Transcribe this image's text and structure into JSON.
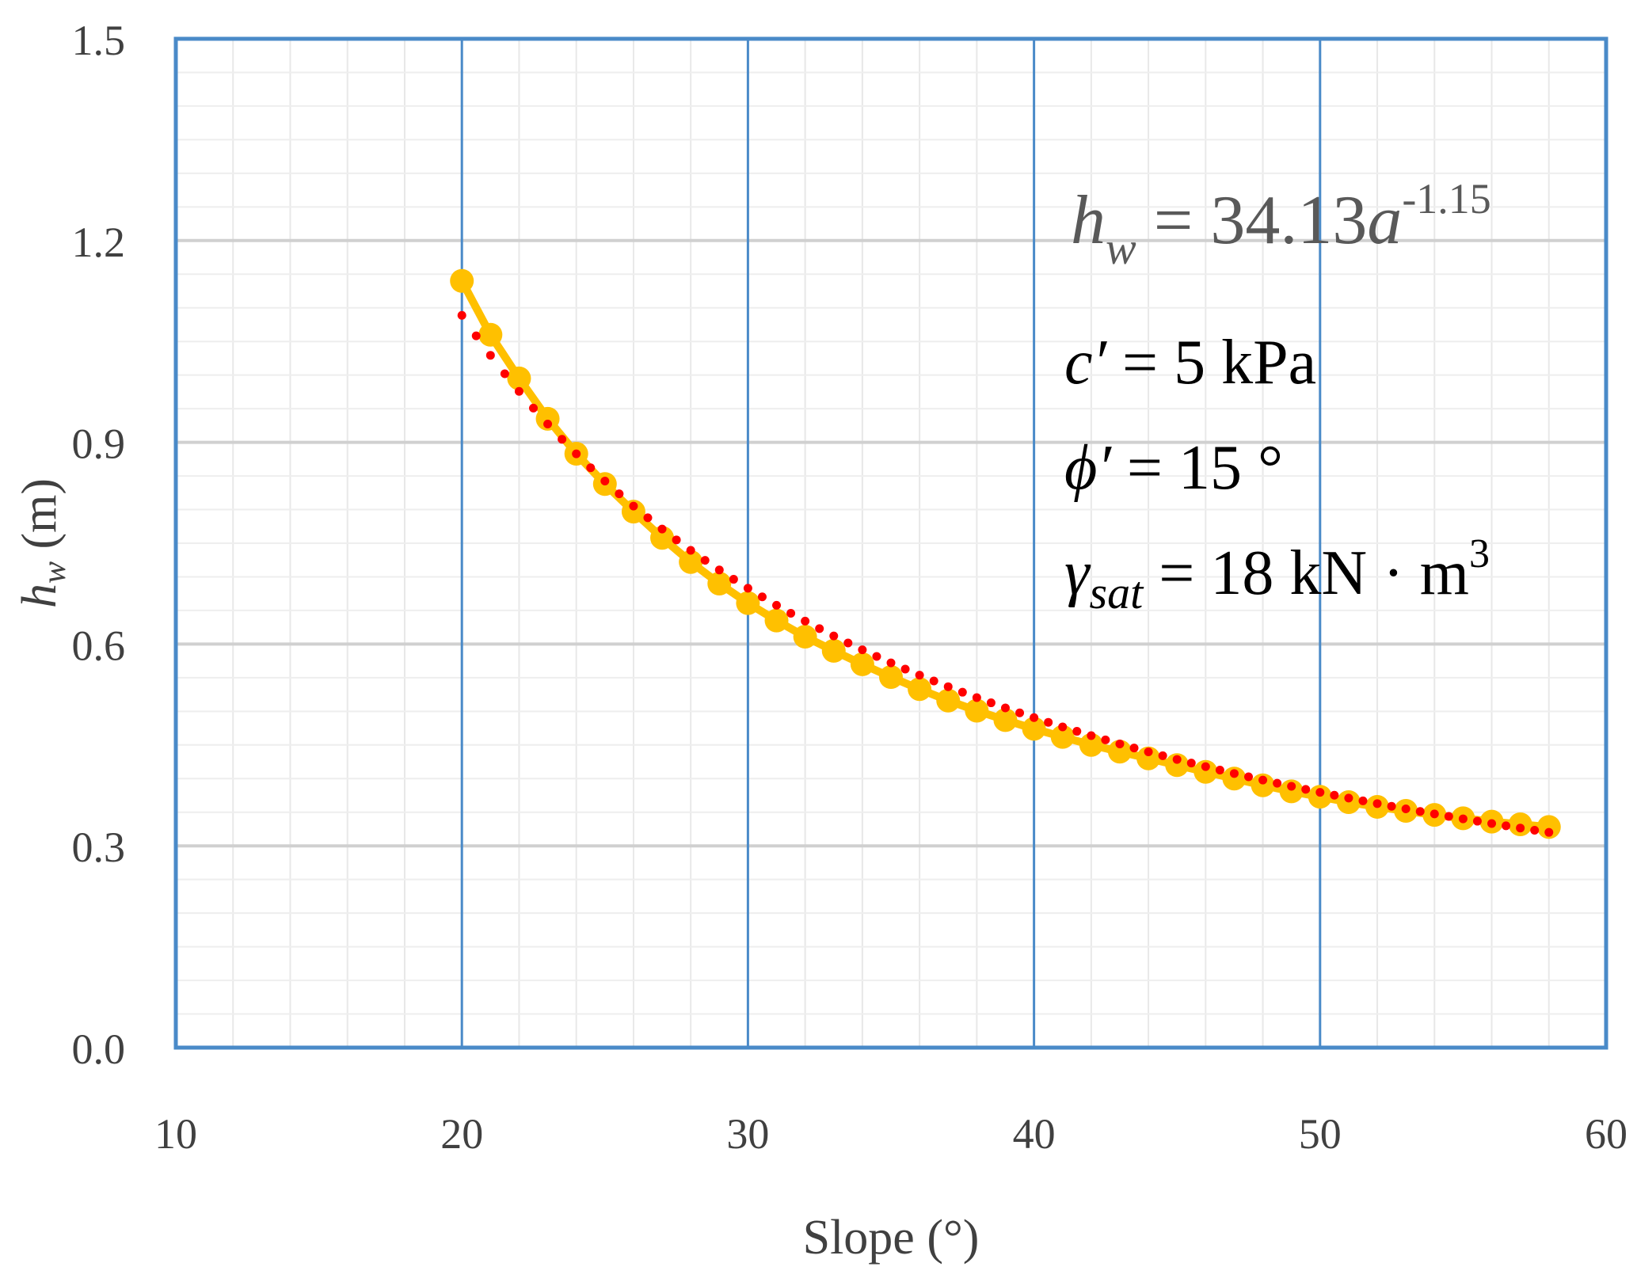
{
  "chart_data": {
    "type": "scatter",
    "title": "",
    "xlabel": "Slope (°)",
    "ylabel": {
      "main": "h",
      "sub": "w",
      "unit": " (m)"
    },
    "xlim": [
      10,
      60
    ],
    "ylim": [
      0,
      1.5
    ],
    "x_ticks": [
      "10",
      "20",
      "30",
      "40",
      "50",
      "60"
    ],
    "y_ticks": [
      "0.0",
      "0.3",
      "0.6",
      "0.9",
      "1.2",
      "1.5"
    ],
    "x_tick_values": [
      10,
      20,
      30,
      40,
      50,
      60
    ],
    "y_tick_values": [
      0,
      0.3,
      0.6,
      0.9,
      1.2,
      1.5
    ],
    "grid": true,
    "series": [
      {
        "color": "#FFC000",
        "style": "markers-with-line",
        "x": [
          20,
          21,
          22,
          23,
          24,
          25,
          26,
          27,
          28,
          29,
          30,
          31,
          32,
          33,
          34,
          35,
          36,
          37,
          38,
          39,
          40,
          41,
          42,
          43,
          44,
          45,
          46,
          47,
          48,
          49,
          50,
          51,
          52,
          53,
          54,
          55,
          56,
          57,
          58
        ],
        "y": [
          1.14,
          1.06,
          0.995,
          0.935,
          0.883,
          0.838,
          0.797,
          0.758,
          0.722,
          0.69,
          0.661,
          0.635,
          0.611,
          0.59,
          0.57,
          0.551,
          0.533,
          0.516,
          0.501,
          0.487,
          0.474,
          0.462,
          0.45,
          0.44,
          0.43,
          0.42,
          0.41,
          0.4,
          0.39,
          0.381,
          0.373,
          0.365,
          0.358,
          0.352,
          0.346,
          0.341,
          0.336,
          0.332,
          0.328
        ]
      },
      {
        "color": "#FF0000",
        "style": "dotted-trendline",
        "model": {
          "a": 34.13,
          "b": -1.15
        }
      }
    ],
    "annotations": {
      "equation": {
        "lhs": "h",
        "lhs_sub": "w",
        "rhs": " = 34.13",
        "var": "a",
        "exp": "-1.15"
      },
      "cohesion": {
        "sym": "c′",
        "text": " = 5 kPa"
      },
      "friction": {
        "sym": "ϕ′",
        "text": " = 15 °"
      },
      "unit_weight": {
        "sym": "γ",
        "sub": "sat",
        "text": " = 18 kN · m",
        "sup": "3"
      }
    }
  }
}
